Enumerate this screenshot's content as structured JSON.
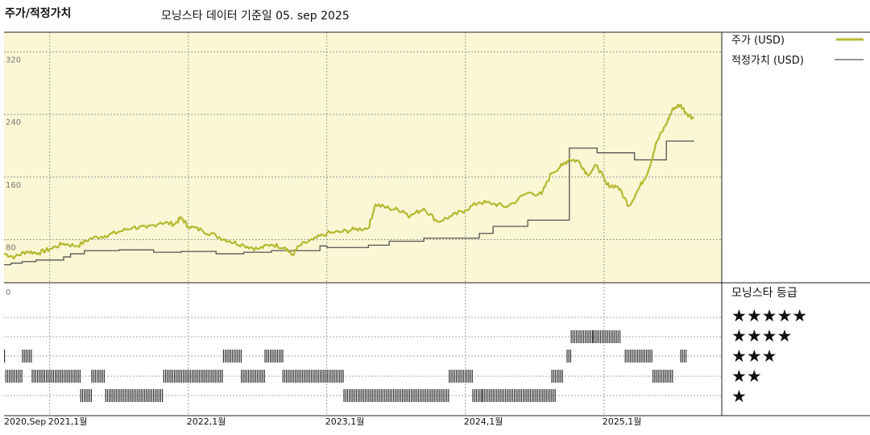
{
  "header": {
    "title": "주가/적정가치",
    "source": "모닝스타 데이터 기준일 05. sep 2025"
  },
  "colors": {
    "price": "#b5b830",
    "fair": "#555555",
    "panel_bg": "#fbf6d4",
    "grid": "#8a8a8a",
    "bars": "#333333"
  },
  "legend": {
    "price_label": "주가 (USD)",
    "fair_label": "적정가치 (USD)",
    "rating_title": "모닝스타 등급",
    "stars": [
      "★★★★★",
      "★★★★",
      "★★★",
      "★★",
      "★"
    ]
  },
  "x_ticks": [
    "2020,Sep",
    "2021,1월",
    "2022,1월",
    "2023,1월",
    "2024,1월",
    "2025,1월"
  ],
  "chart_data": {
    "type": "line",
    "x_unit": "year (decimal)",
    "xlim": [
      2020.67,
      2025.85
    ],
    "ylim": [
      25,
      345
    ],
    "y_ticks": [
      320,
      240,
      160,
      80
    ],
    "grid": true,
    "legend_position": "right",
    "series": [
      {
        "name": "주가 (USD)",
        "points": [
          [
            2020.67,
            62
          ],
          [
            2020.75,
            58
          ],
          [
            2020.83,
            65
          ],
          [
            2020.92,
            63
          ],
          [
            2021.0,
            68
          ],
          [
            2021.1,
            75
          ],
          [
            2021.2,
            72
          ],
          [
            2021.3,
            82
          ],
          [
            2021.4,
            85
          ],
          [
            2021.5,
            90
          ],
          [
            2021.6,
            96
          ],
          [
            2021.7,
            95
          ],
          [
            2021.8,
            102
          ],
          [
            2021.9,
            100
          ],
          [
            2021.95,
            108
          ],
          [
            2022.0,
            97
          ],
          [
            2022.1,
            92
          ],
          [
            2022.2,
            85
          ],
          [
            2022.3,
            78
          ],
          [
            2022.4,
            73
          ],
          [
            2022.5,
            68
          ],
          [
            2022.6,
            74
          ],
          [
            2022.7,
            70
          ],
          [
            2022.75,
            60
          ],
          [
            2022.8,
            72
          ],
          [
            2022.9,
            80
          ],
          [
            2023.0,
            88
          ],
          [
            2023.1,
            90
          ],
          [
            2023.2,
            93
          ],
          [
            2023.3,
            95
          ],
          [
            2023.35,
            125
          ],
          [
            2023.45,
            120
          ],
          [
            2023.55,
            117
          ],
          [
            2023.6,
            110
          ],
          [
            2023.7,
            120
          ],
          [
            2023.8,
            103
          ],
          [
            2023.9,
            110
          ],
          [
            2024.0,
            118
          ],
          [
            2024.1,
            128
          ],
          [
            2024.2,
            126
          ],
          [
            2024.3,
            122
          ],
          [
            2024.45,
            140
          ],
          [
            2024.55,
            138
          ],
          [
            2024.62,
            165
          ],
          [
            2024.7,
            175
          ],
          [
            2024.75,
            183
          ],
          [
            2024.82,
            180
          ],
          [
            2024.88,
            163
          ],
          [
            2024.95,
            175
          ],
          [
            2025.02,
            150
          ],
          [
            2025.1,
            148
          ],
          [
            2025.18,
            123
          ],
          [
            2025.25,
            145
          ],
          [
            2025.32,
            168
          ],
          [
            2025.38,
            205
          ],
          [
            2025.45,
            228
          ],
          [
            2025.5,
            248
          ],
          [
            2025.55,
            252
          ],
          [
            2025.6,
            241
          ],
          [
            2025.65,
            235
          ]
        ]
      },
      {
        "name": "적정가치 (USD)",
        "step": true,
        "points": [
          [
            2020.67,
            48
          ],
          [
            2020.72,
            50
          ],
          [
            2020.8,
            52
          ],
          [
            2020.9,
            54
          ],
          [
            2021.1,
            58
          ],
          [
            2021.15,
            62
          ],
          [
            2021.25,
            66
          ],
          [
            2021.5,
            67
          ],
          [
            2021.75,
            64
          ],
          [
            2021.95,
            65
          ],
          [
            2022.2,
            62
          ],
          [
            2022.4,
            64
          ],
          [
            2022.6,
            66
          ],
          [
            2022.75,
            66
          ],
          [
            2022.95,
            72
          ],
          [
            2023.0,
            70
          ],
          [
            2023.3,
            73
          ],
          [
            2023.45,
            78
          ],
          [
            2023.7,
            82
          ],
          [
            2023.75,
            82
          ],
          [
            2024.1,
            88
          ],
          [
            2024.2,
            97
          ],
          [
            2024.45,
            105
          ],
          [
            2024.75,
            197
          ],
          [
            2024.95,
            191
          ],
          [
            2025.22,
            182
          ],
          [
            2025.45,
            206
          ]
        ]
      }
    ],
    "ratings": {
      "scale": "stars (1-5)",
      "segments": [
        [
          2020.67,
          2020.68,
          3
        ],
        [
          2020.68,
          2020.8,
          2
        ],
        [
          2020.8,
          2020.87,
          3
        ],
        [
          2020.87,
          2021.22,
          2
        ],
        [
          2021.22,
          2021.3,
          1
        ],
        [
          2021.3,
          2021.4,
          2
        ],
        [
          2021.4,
          2021.82,
          1
        ],
        [
          2021.82,
          2022.25,
          2
        ],
        [
          2022.25,
          2022.38,
          3
        ],
        [
          2022.38,
          2022.55,
          2
        ],
        [
          2022.55,
          2022.68,
          3
        ],
        [
          2022.68,
          2023.12,
          2
        ],
        [
          2023.12,
          2023.88,
          1
        ],
        [
          2023.88,
          2024.05,
          2
        ],
        [
          2024.05,
          2024.12,
          1
        ],
        [
          2024.12,
          2024.65,
          1
        ],
        [
          2024.62,
          2024.7,
          2
        ],
        [
          2024.73,
          2024.76,
          3
        ],
        [
          2024.76,
          2024.92,
          4
        ],
        [
          2024.92,
          2025.12,
          4
        ],
        [
          2025.15,
          2025.35,
          3
        ],
        [
          2025.35,
          2025.5,
          2
        ],
        [
          2025.55,
          2025.6,
          3
        ]
      ]
    }
  }
}
